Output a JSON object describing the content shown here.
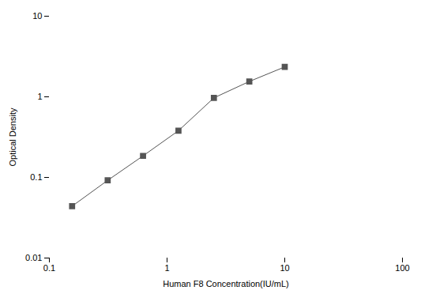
{
  "chart_data": {
    "type": "line",
    "x": [
      0.156,
      0.313,
      0.625,
      1.25,
      2.5,
      5.0,
      10.0
    ],
    "values": [
      0.044,
      0.092,
      0.185,
      0.38,
      0.97,
      1.55,
      2.35
    ],
    "color": "#555555",
    "marker": "square",
    "xlabel": "Human F8 Concentration(IU/mL)",
    "ylabel": "Optical Density",
    "log": true,
    "xlim": [
      0.1,
      100
    ],
    "ylim": [
      0.01,
      10
    ],
    "xticks": [
      0.1,
      1,
      10,
      100
    ],
    "yticks": [
      0.01,
      0.1,
      1,
      10
    ],
    "grid": false
  }
}
